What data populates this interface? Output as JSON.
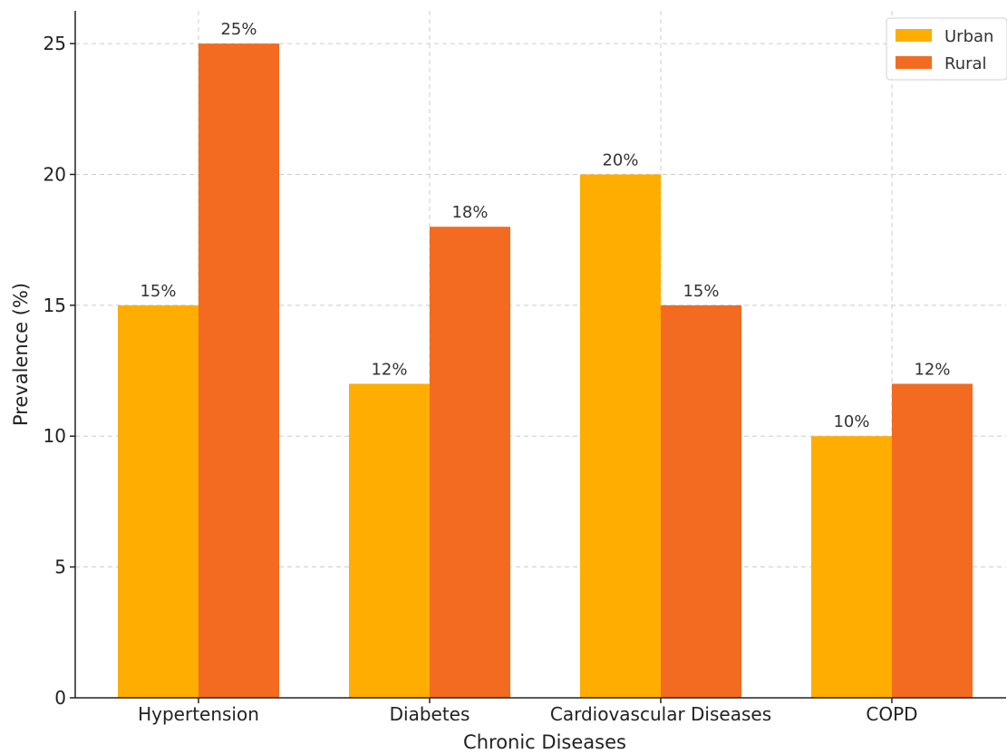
{
  "chart_data": {
    "type": "bar",
    "title": "",
    "xlabel": "Chronic Diseases",
    "ylabel": "Prevalence (%)",
    "categories": [
      "Hypertension",
      "Diabetes",
      "Cardiovascular Diseases",
      "COPD"
    ],
    "series": [
      {
        "name": "Urban",
        "values": [
          15,
          12,
          20,
          10
        ],
        "labels": [
          "15%",
          "12%",
          "20%",
          "10%"
        ],
        "color": "#FFAD00"
      },
      {
        "name": "Rural",
        "values": [
          25,
          18,
          15,
          12
        ],
        "labels": [
          "25%",
          "18%",
          "15%",
          "12%"
        ],
        "color": "#F26B21"
      }
    ],
    "ylim": [
      0,
      26.25
    ],
    "yticks": [
      0,
      5,
      10,
      15,
      20,
      25
    ],
    "grid": true,
    "legend_position": "top-right"
  }
}
